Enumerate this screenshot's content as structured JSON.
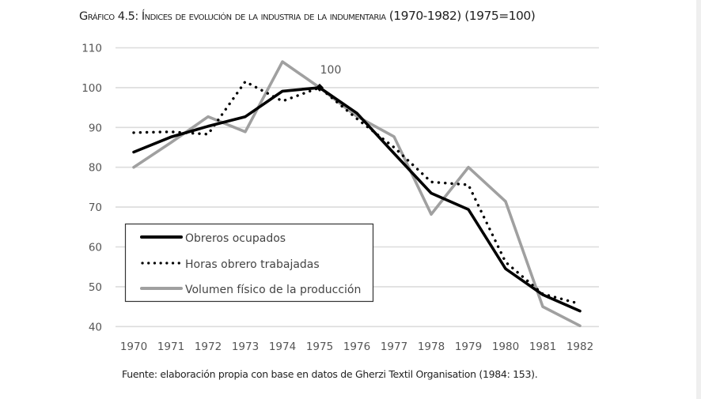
{
  "title": {
    "prefix": "Gráfico 4.5: Índices de evolución de la industria de la indumentaria",
    "suffix": "(1970-1982) (1975=100)"
  },
  "source": "Fuente: elaboración propia con base en datos de Gherzi Textil Organisation (1984: 153).",
  "chart_data": {
    "type": "line",
    "title": "Gráfico 4.5: Índices de evolución de la industria de la indumentaria (1970-1982) (1975=100)",
    "xlabel": "",
    "ylabel": "",
    "x": [
      1970,
      1971,
      1972,
      1973,
      1974,
      1975,
      1976,
      1977,
      1978,
      1979,
      1980,
      1981,
      1982
    ],
    "x_tick_labels": [
      "1970",
      "1971",
      "1972",
      "1973",
      "1974",
      "1975",
      "1976",
      "1977",
      "1978",
      "1979",
      "1980",
      "1981",
      "1982"
    ],
    "ylim": [
      40,
      110
    ],
    "y_ticks": [
      40,
      50,
      60,
      70,
      80,
      90,
      100,
      110
    ],
    "y_tick_labels": [
      "40",
      "50",
      "60",
      "70",
      "80",
      "90",
      "100",
      "110"
    ],
    "grid": true,
    "legend_position": "bottom-left",
    "series": [
      {
        "name": "Obreros ocupados",
        "style": "solid",
        "color": "#000000",
        "values": [
          83.8,
          87.6,
          90.3,
          92.7,
          99.1,
          100,
          93.6,
          83.5,
          73.5,
          69.4,
          54.5,
          48.0,
          43.9
        ]
      },
      {
        "name": "Horas obrero trabajadas",
        "style": "dotted",
        "color": "#000000",
        "values": [
          88.7,
          88.9,
          88.3,
          101.5,
          96.6,
          100,
          92.2,
          85.0,
          76.3,
          75.6,
          56.2,
          48.2,
          45.7
        ]
      },
      {
        "name": "Volumen físico de la producción",
        "style": "solid",
        "color": "#a0a0a0",
        "values": [
          80.0,
          86.2,
          92.7,
          88.9,
          106.5,
          100,
          92.8,
          87.7,
          68.2,
          80.0,
          71.4,
          45.0,
          40.2
        ]
      }
    ],
    "annotations": [
      {
        "text": "100",
        "x": 1975,
        "y": 100,
        "marker": "diamond"
      }
    ]
  }
}
